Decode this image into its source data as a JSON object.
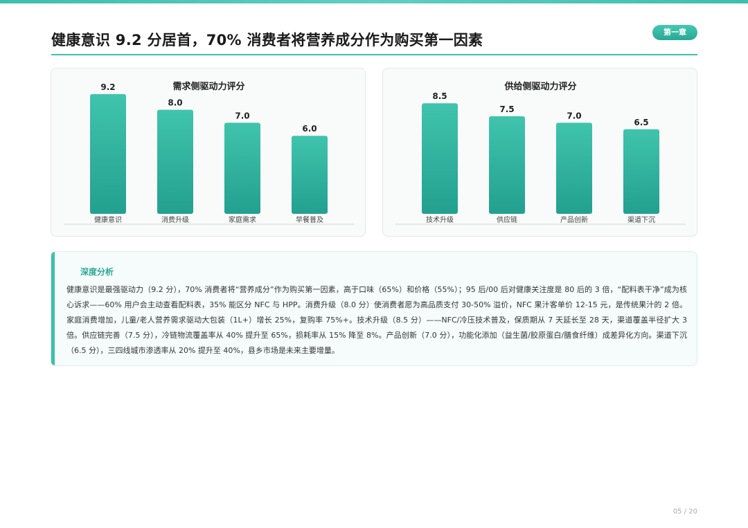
{
  "header": {
    "title": "健康意识 9.2 分居首，70% 消费者将营养成分作为购买第一因素",
    "chapter": "第一章"
  },
  "chart_data": [
    {
      "type": "bar",
      "title": "需求侧驱动力评分",
      "categories": [
        "健康意识",
        "消费升级",
        "家庭需求",
        "早餐普及"
      ],
      "values": [
        9.2,
        8.0,
        7.0,
        6.0
      ],
      "value_labels": [
        "9.2",
        "8.0",
        "7.0",
        "6.0"
      ],
      "ylim": [
        0,
        10
      ]
    },
    {
      "type": "bar",
      "title": "供给侧驱动力评分",
      "categories": [
        "技术升级",
        "供应链",
        "产品创新",
        "渠道下沉"
      ],
      "values": [
        8.5,
        7.5,
        7.0,
        6.5
      ],
      "value_labels": [
        "8.5",
        "7.5",
        "7.0",
        "6.5"
      ],
      "ylim": [
        0,
        10
      ]
    }
  ],
  "analysis": {
    "title": "深度分析",
    "body": "健康意识是最强驱动力（9.2 分），70% 消费者将“营养成分”作为购买第一因素，高于口味（65%）和价格（55%）；95 后/00 后对健康关注度是 80 后的 3 倍，“配料表干净”成为核心诉求——60% 用户会主动查看配料表，35% 能区分 NFC 与 HPP。消费升级（8.0 分）使消费者愿为高品质支付 30-50% 溢价，NFC 果汁客单价 12-15 元，是传统果汁的 2 倍。家庭消费增加，儿童/老人营养需求驱动大包装（1L+）增长 25%，复购率 75%+。技术升级（8.5 分）——NFC/冷压技术普及，保质期从 7 天延长至 28 天，渠道覆盖半径扩大 3 倍。供应链完善（7.5 分），冷链物流覆盖率从 40% 提升至 65%，损耗率从 15% 降至 8%。产品创新（7.0 分），功能化添加（益生菌/胶原蛋白/膳食纤维）成差异化方向。渠道下沉（6.5 分），三四线城市渗透率从 20% 提升至 40%，县乡市场是未来主要增量。"
  },
  "footer": {
    "page": "05 / 20"
  },
  "colors": {
    "accent": "#3dbfa9",
    "bar_top": "#40c4ad",
    "bar_bottom": "#23a08f"
  }
}
